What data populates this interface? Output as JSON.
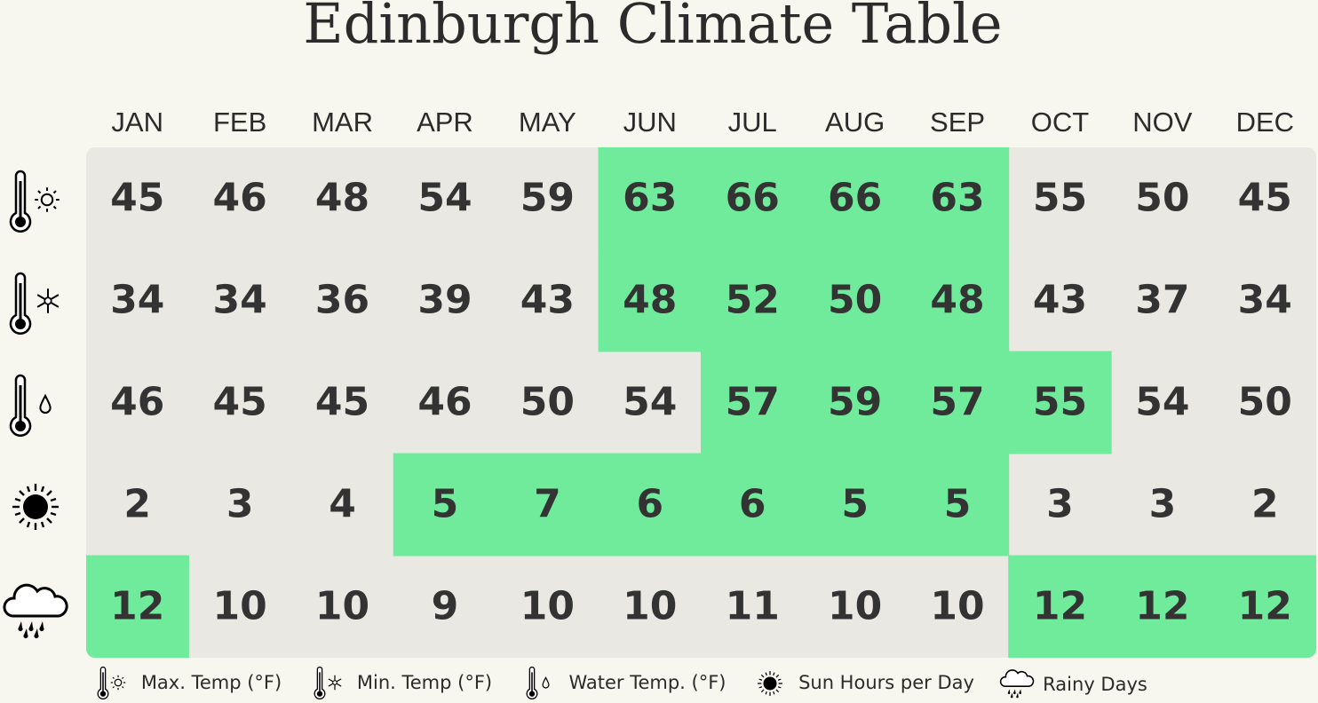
{
  "title": "Edinburgh Climate Table",
  "months": [
    "JAN",
    "FEB",
    "MAR",
    "APR",
    "MAY",
    "JUN",
    "JUL",
    "AUG",
    "SEP",
    "OCT",
    "NOV",
    "DEC"
  ],
  "highlight_color": "#6feb9b",
  "rows": [
    {
      "values": [
        45,
        46,
        48,
        54,
        59,
        63,
        66,
        66,
        63,
        55,
        50,
        45
      ],
      "highlight": [
        false,
        false,
        false,
        false,
        false,
        true,
        true,
        true,
        true,
        false,
        false,
        false
      ]
    },
    {
      "values": [
        34,
        34,
        36,
        39,
        43,
        48,
        52,
        50,
        48,
        43,
        37,
        34
      ],
      "highlight": [
        false,
        false,
        false,
        false,
        false,
        true,
        true,
        true,
        true,
        false,
        false,
        false
      ]
    },
    {
      "values": [
        46,
        45,
        45,
        46,
        50,
        54,
        57,
        59,
        57,
        55,
        54,
        50
      ],
      "highlight": [
        false,
        false,
        false,
        false,
        false,
        false,
        true,
        true,
        true,
        true,
        false,
        false
      ]
    },
    {
      "values": [
        2,
        3,
        4,
        5,
        7,
        6,
        6,
        5,
        5,
        3,
        3,
        2
      ],
      "highlight": [
        false,
        false,
        false,
        true,
        true,
        true,
        true,
        true,
        true,
        false,
        false,
        false
      ]
    },
    {
      "values": [
        12,
        10,
        10,
        9,
        10,
        10,
        11,
        10,
        10,
        12,
        12,
        12
      ],
      "highlight": [
        true,
        false,
        false,
        false,
        false,
        false,
        false,
        false,
        false,
        true,
        true,
        true
      ]
    }
  ],
  "legend": [
    "Max. Temp (°F)",
    "Min. Temp (°F)",
    "Water Temp. (°F)",
    "Sun Hours per Day",
    "Rainy Days"
  ]
}
